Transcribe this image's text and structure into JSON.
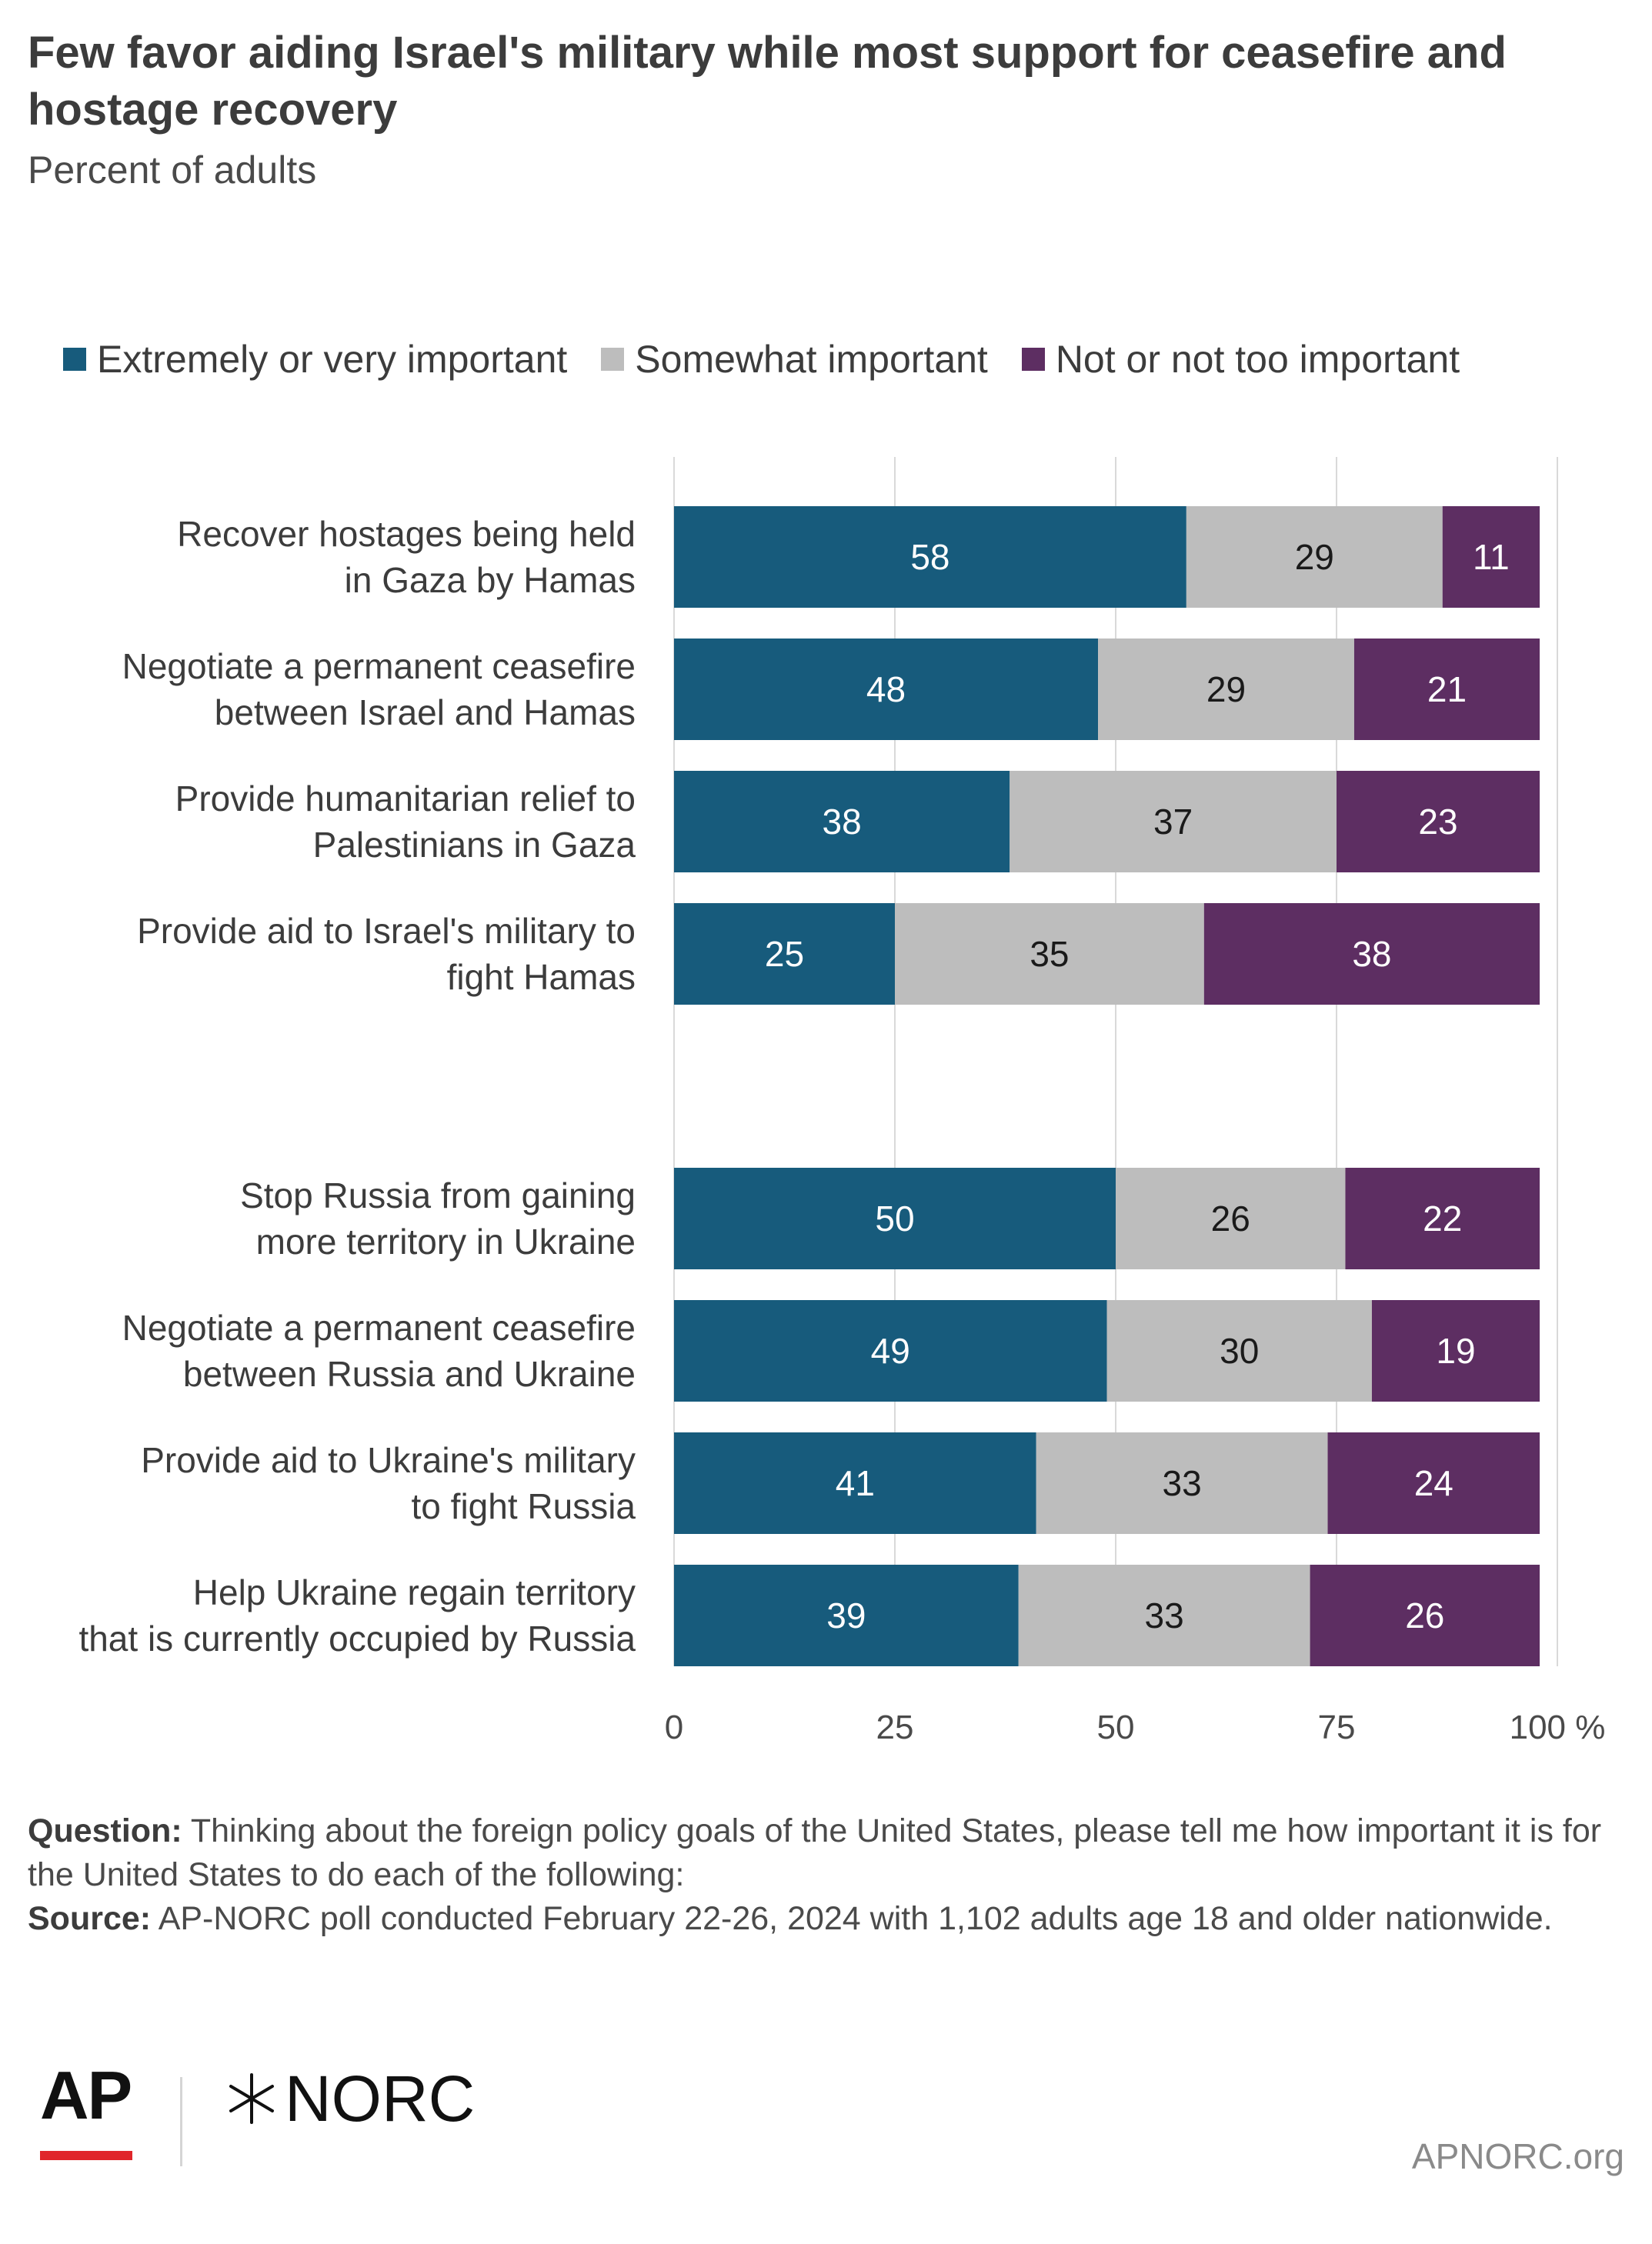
{
  "title": "Few favor aiding Israel's military while most support for ceasefire and hostage recovery",
  "subtitle": "Percent of adults",
  "legend": [
    {
      "label": "Extremely or very important",
      "color": "#175b7c"
    },
    {
      "label": "Somewhat important",
      "color": "#bdbdbd"
    },
    {
      "label": "Not or not too important",
      "color": "#5d2e62"
    }
  ],
  "chart_data": {
    "type": "bar",
    "orientation": "horizontal",
    "stacked": true,
    "categories": [
      "Recover hostages being held in Gaza by Hamas",
      "Negotiate a permanent ceasefire between Israel and Hamas",
      "Provide humanitarian relief to Palestinians in Gaza",
      "Provide aid to Israel's military to fight Hamas",
      "Stop Russia from gaining more territory in Ukraine",
      "Negotiate a permanent ceasefire between Russia and Ukraine",
      "Provide aid to Ukraine's military to fight Russia",
      "Help Ukraine regain territory that is currently occupied by Russia"
    ],
    "category_lines": [
      [
        "Recover hostages being held",
        "in Gaza by Hamas"
      ],
      [
        "Negotiate a permanent ceasefire",
        "between Israel and Hamas"
      ],
      [
        "Provide humanitarian relief to",
        "Palestinians in Gaza"
      ],
      [
        "Provide aid to Israel's military to",
        "fight Hamas"
      ],
      [
        "Stop Russia from gaining",
        "more territory in Ukraine"
      ],
      [
        "Negotiate a permanent ceasefire",
        "between Russia and Ukraine"
      ],
      [
        "Provide aid to Ukraine's military",
        "to fight Russia"
      ],
      [
        "Help Ukraine regain territory",
        "that is currently occupied by Russia"
      ]
    ],
    "series": [
      {
        "name": "Extremely or very important",
        "color": "#175b7c",
        "label_color": "#ffffff",
        "values": [
          58,
          48,
          38,
          25,
          50,
          49,
          41,
          39
        ]
      },
      {
        "name": "Somewhat important",
        "color": "#bdbdbd",
        "label_color": "#1a1a1a",
        "values": [
          29,
          29,
          37,
          35,
          26,
          30,
          33,
          33
        ]
      },
      {
        "name": "Not or not too important",
        "color": "#5d2e62",
        "label_color": "#ffffff",
        "values": [
          11,
          21,
          23,
          38,
          22,
          19,
          24,
          26
        ]
      }
    ],
    "xlim": [
      0,
      100
    ],
    "xticks": [
      "0",
      "25",
      "50",
      "75",
      "100 %"
    ],
    "grid": true,
    "legend_position": "top"
  },
  "footer": {
    "question_label": "Question:",
    "question_text": "Thinking about the foreign policy goals of the United States, please tell me how important it is for the United States to do each of the following:",
    "source_label": "Source:",
    "source_text": "AP-NORC poll conducted February 22-26, 2024 with 1,102 adults age 18 and older nationwide."
  },
  "branding": {
    "ap": "AP",
    "norc": "NORC",
    "site": "APNORC.org"
  }
}
